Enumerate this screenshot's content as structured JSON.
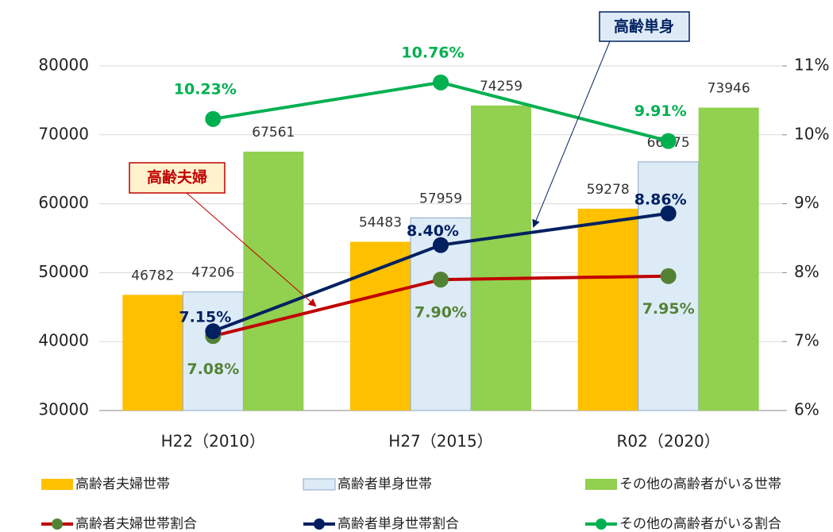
{
  "chart_data": {
    "type": "combo",
    "categories": [
      "H22（2010）",
      "H27（2015）",
      "R02（2020）"
    ],
    "series": [
      {
        "name": "高齢者夫婦世帯",
        "type": "bar",
        "color": "#FFC000",
        "values": [
          46782,
          54483,
          59278
        ]
      },
      {
        "name": "高齢者単身世帯",
        "type": "bar",
        "color": "#DDEBF7",
        "values": [
          47206,
          57959,
          66075
        ]
      },
      {
        "name": "その他の高齢者がいる世帯",
        "type": "bar",
        "color": "#92D050",
        "values": [
          67561,
          74259,
          73946
        ]
      },
      {
        "name": "高齢者夫婦世帯割合",
        "type": "line",
        "axis": "y2",
        "color": "#C00000",
        "marker_color": "#548235",
        "values": [
          7.08,
          7.9,
          7.95
        ],
        "value_labels": [
          "7.08%",
          "7.90%",
          "7.95%"
        ]
      },
      {
        "name": "高齢者単身世帯割合",
        "type": "line",
        "axis": "y2",
        "color": "#002060",
        "marker_color": "#002060",
        "values": [
          7.15,
          8.4,
          8.86
        ],
        "value_labels": [
          "7.15%",
          "8.40%",
          "8.86%"
        ]
      },
      {
        "name": "その他の高齢者がいる割合",
        "type": "line",
        "axis": "y2",
        "color": "#00B050",
        "marker_color": "#00B050",
        "values": [
          10.23,
          10.76,
          9.91
        ],
        "value_labels": [
          "10.23%",
          "10.76%",
          "9.91%"
        ]
      }
    ],
    "ylim": [
      30000,
      80000
    ],
    "yticks": [
      30000,
      40000,
      50000,
      60000,
      70000,
      80000
    ],
    "y2lim": [
      6,
      11
    ],
    "y2ticks": [
      {
        "value": 6,
        "label": "6%"
      },
      {
        "value": 7,
        "label": "7%"
      },
      {
        "value": 8,
        "label": "8%"
      },
      {
        "value": 9,
        "label": "9%"
      },
      {
        "value": 10,
        "label": "10%"
      },
      {
        "value": 11,
        "label": "11%"
      }
    ],
    "grid": true,
    "annotations": [
      "高齢夫婦",
      "高齢単身"
    ]
  }
}
